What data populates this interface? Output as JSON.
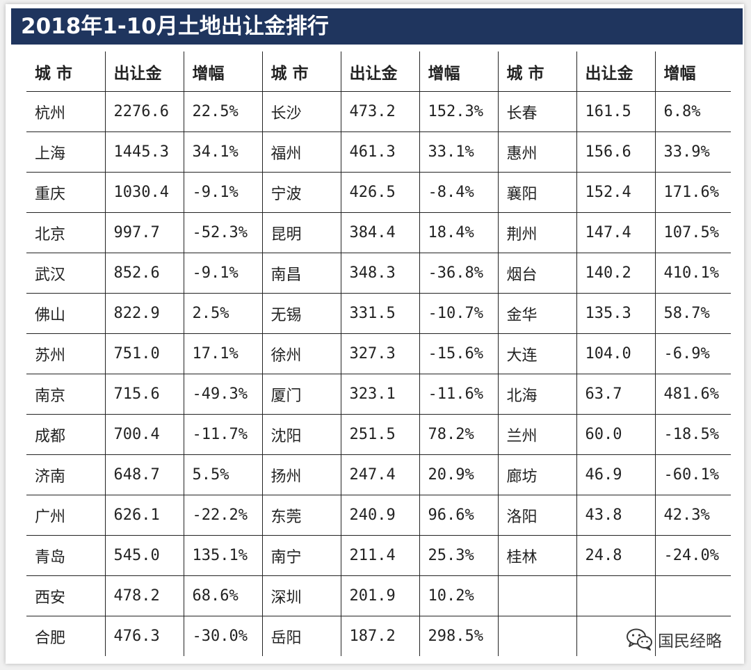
{
  "title": "2018年1-10月土地出让金排行",
  "headers": [
    "城 市",
    "出让金",
    "增幅",
    "城 市",
    "出让金",
    "增幅",
    "城 市",
    "出让金",
    "增幅"
  ],
  "rows": [
    [
      "杭州",
      "2276.6",
      "22.5%",
      "长沙",
      "473.2",
      "152.3%",
      "长春",
      "161.5",
      "6.8%"
    ],
    [
      "上海",
      "1445.3",
      "34.1%",
      "福州",
      "461.3",
      "33.1%",
      "惠州",
      "156.6",
      "33.9%"
    ],
    [
      "重庆",
      "1030.4",
      "-9.1%",
      "宁波",
      "426.5",
      "-8.4%",
      "襄阳",
      "152.4",
      "171.6%"
    ],
    [
      "北京",
      "997.7",
      "-52.3%",
      "昆明",
      "384.4",
      "18.4%",
      "荆州",
      "147.4",
      "107.5%"
    ],
    [
      "武汉",
      "852.6",
      "-9.1%",
      "南昌",
      "348.3",
      "-36.8%",
      "烟台",
      "140.2",
      "410.1%"
    ],
    [
      "佛山",
      "822.9",
      "2.5%",
      "无锡",
      "331.5",
      "-10.7%",
      "金华",
      "135.3",
      "58.7%"
    ],
    [
      "苏州",
      "751.0",
      "17.1%",
      "徐州",
      "327.3",
      "-15.6%",
      "大连",
      "104.0",
      "-6.9%"
    ],
    [
      "南京",
      "715.6",
      "-49.3%",
      "厦门",
      "323.1",
      "-11.6%",
      "北海",
      "63.7",
      "481.6%"
    ],
    [
      "成都",
      "700.4",
      "-11.7%",
      "沈阳",
      "251.5",
      "78.2%",
      "兰州",
      "60.0",
      "-18.5%"
    ],
    [
      "济南",
      "648.7",
      "5.5%",
      "扬州",
      "247.4",
      "20.9%",
      "廊坊",
      "46.9",
      "-60.1%"
    ],
    [
      "广州",
      "626.1",
      "-22.2%",
      "东莞",
      "240.9",
      "96.6%",
      "洛阳",
      "43.8",
      "42.3%"
    ],
    [
      "青岛",
      "545.0",
      "135.1%",
      "南宁",
      "211.4",
      "25.3%",
      "桂林",
      "24.8",
      "-24.0%"
    ],
    [
      "西安",
      "478.2",
      "68.6%",
      "深圳",
      "201.9",
      "10.2%",
      "",
      "",
      ""
    ],
    [
      "合肥",
      "476.3",
      "-30.0%",
      "岳阳",
      "187.2",
      "298.5%",
      "",
      "",
      ""
    ]
  ],
  "watermark": "国民经略",
  "colors": {
    "title_bg": "#1f355e",
    "title_text": "#ffffff",
    "text": "#222222"
  },
  "icons": {
    "watermark_icon": "wechat-icon"
  }
}
